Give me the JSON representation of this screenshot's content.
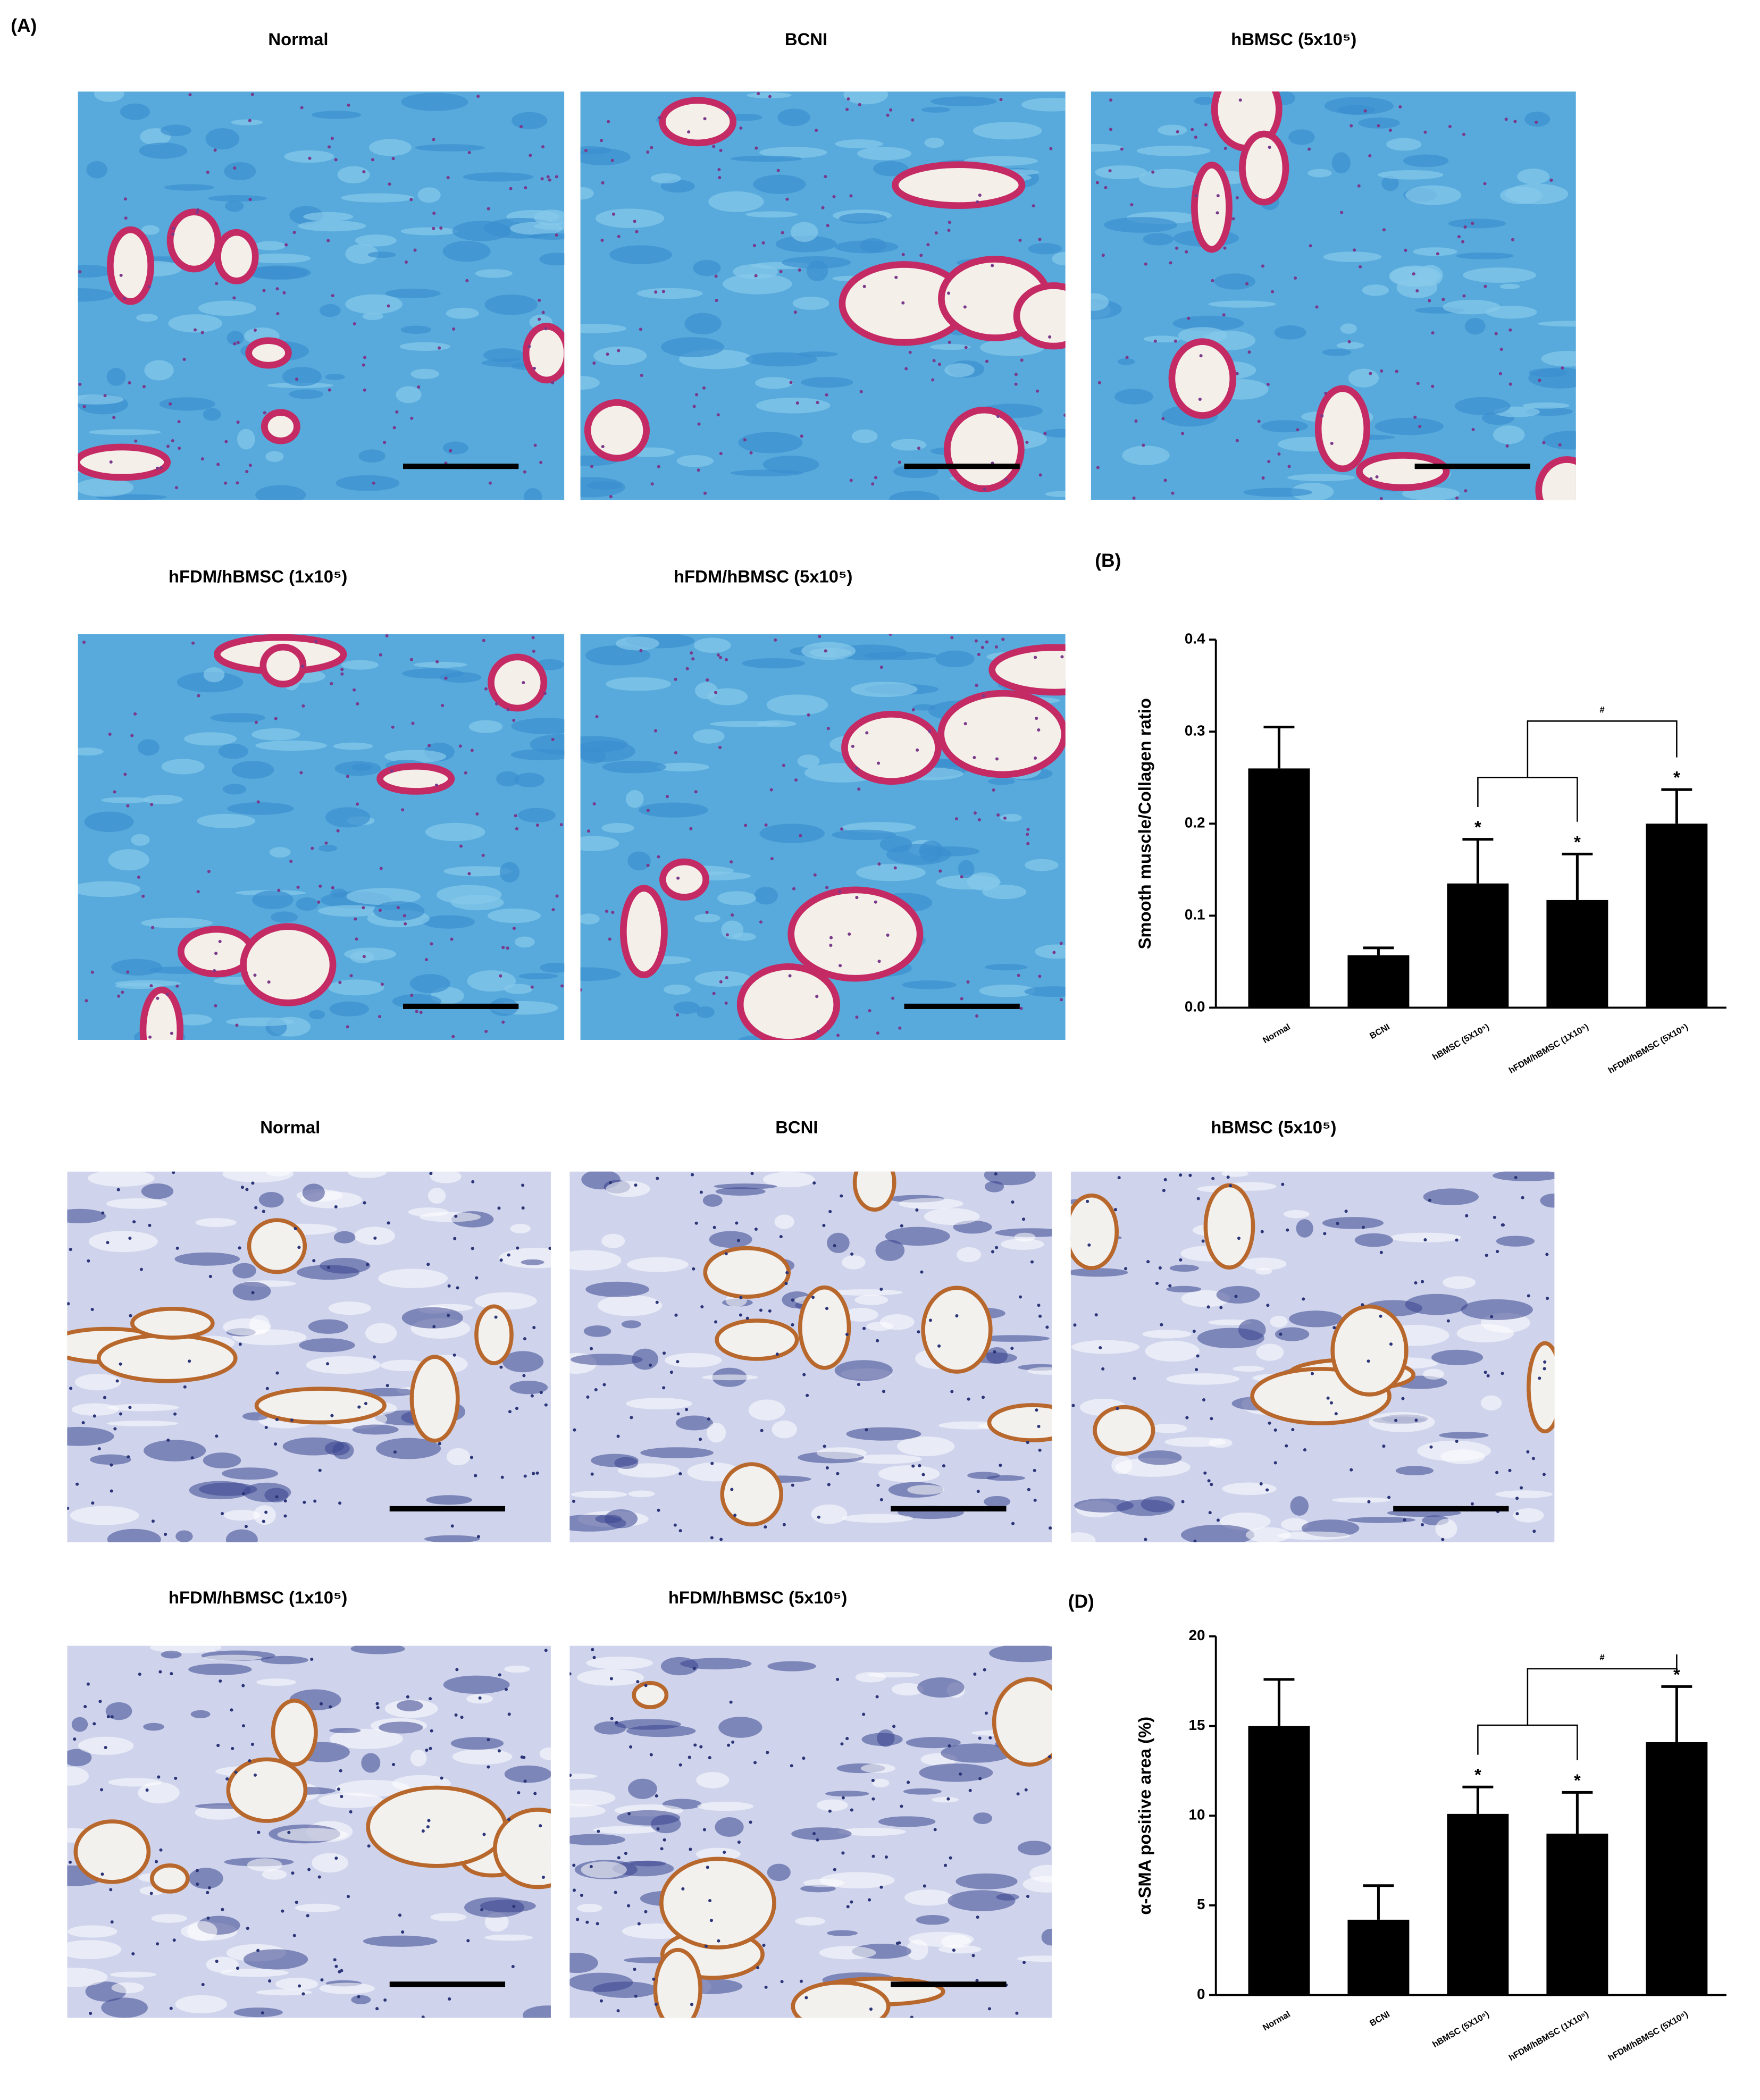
{
  "figure_label": "(A)",
  "trichrome_images": [
    "Normal",
    "BCNI",
    "hBMSC (5x10⁵)",
    "hFDM/hBMSC (1x10⁵)",
    "hFDM/hBMSC (5x10⁵)"
  ],
  "ihc_images": [
    "Normal",
    "BCNI",
    "hBMSC (5x10⁵)",
    "hFDM/hBMSC (1x10⁵)",
    "hFDM/hBMSC (5x10⁵)"
  ],
  "chart_data": [
    {
      "type": "bar",
      "panel_label": "(B)",
      "y_label": "Smooth muscle/Collagen ratio",
      "categories": [
        "Normal",
        "BCNI",
        "hBMSC (5X10⁵)",
        "hFDM/hBMSC (1X10⁵)",
        "hFDM/hBMSC (5X10⁵)"
      ],
      "values": [
        0.26,
        0.057,
        0.135,
        0.117,
        0.2
      ],
      "errors": [
        0.045,
        0.008,
        0.048,
        0.05,
        0.037
      ],
      "color": "#000000",
      "ylim": [
        0,
        0.4
      ],
      "yticks": [
        {
          "value": 0,
          "label": "0.0"
        },
        0.1,
        0.2,
        0.3,
        0.4
      ],
      "significant": [
        false,
        false,
        true,
        true,
        true
      ],
      "significance": "*",
      "comparison": "#"
    },
    {
      "type": "bar",
      "panel_label": "(D)",
      "y_label": "α-SMA positive area (%)",
      "categories": [
        "Normal",
        "BCNI",
        "hBMSC (5X10⁵)",
        "hFDM/hBMSC (1X10⁵)",
        "hFDM/hBMSC (5X10⁵)"
      ],
      "values": [
        15,
        4.2,
        10.1,
        9.0,
        14.1
      ],
      "errors": [
        2.6,
        1.9,
        1.5,
        2.3,
        3.1
      ],
      "color": "#000000",
      "ylim": [
        0,
        20
      ],
      "yticks": [
        0,
        5,
        10,
        15,
        20
      ],
      "significant": [
        false,
        false,
        true,
        true,
        true
      ],
      "significance": "*",
      "comparison": "#"
    }
  ]
}
